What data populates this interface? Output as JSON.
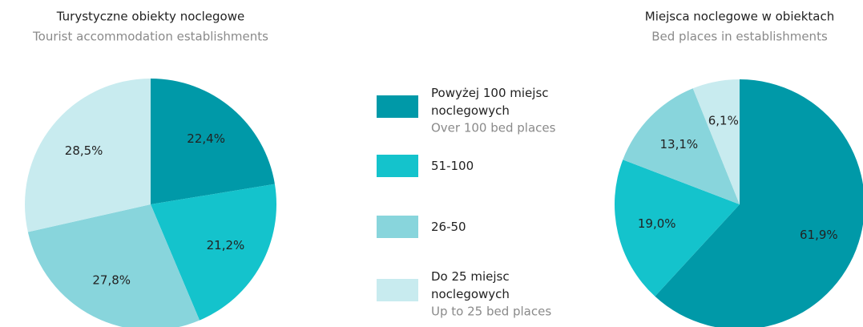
{
  "legend": {
    "items": [
      {
        "label": "Powyżej 100 miejsc noclegowych",
        "sublabel": "Over 100 bed places",
        "color": "#0099a8"
      },
      {
        "label": "51-100",
        "color": "#14c3cc"
      },
      {
        "label": "26-50",
        "color": "#88d5dc"
      },
      {
        "label": "Do 25 miejsc noclegowych",
        "sublabel": "Up to 25 bed places",
        "color": "#c8ebef"
      }
    ]
  },
  "chart_data": [
    {
      "type": "pie",
      "title": "Turystyczne obiekty noclegowe",
      "subtitle": "Tourist accommodation establishments",
      "values": [
        22.4,
        21.2,
        27.8,
        28.5
      ],
      "value_labels": [
        "22,4%",
        "21,2%",
        "27,8%",
        "28,5%"
      ],
      "colors": [
        "#0099a8",
        "#14c3cc",
        "#88d5dc",
        "#c8ebef"
      ]
    },
    {
      "type": "pie",
      "title": "Miejsca noclegowe w obiektach",
      "subtitle": "Bed places in establishments",
      "values": [
        61.9,
        19.0,
        13.1,
        6.1
      ],
      "value_labels": [
        "61,9%",
        "19,0%",
        "13,1%",
        "6,1%"
      ],
      "colors": [
        "#0099a8",
        "#14c3cc",
        "#88d5dc",
        "#c8ebef"
      ]
    }
  ]
}
